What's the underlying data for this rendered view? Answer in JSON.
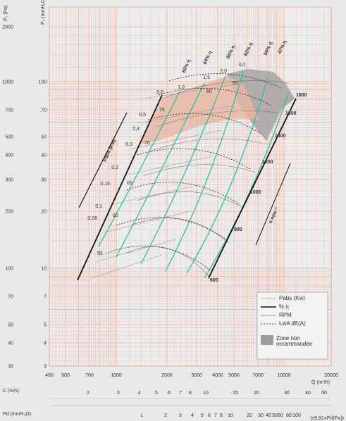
{
  "chart_data": {
    "type": "line",
    "title": "",
    "xlabel": "Q (m³/h)",
    "ylabel_pa": "Pₛ (Pa)",
    "ylabel_mmh2o": "Pₛ (mmH₂O)",
    "xlim": [
      400,
      20000
    ],
    "ylim_pa": [
      294,
      2000
    ],
    "x_scale": "log",
    "y_scale": "log",
    "x_ticks": [
      400,
      500,
      700,
      1000,
      2000,
      3000,
      4000,
      5000,
      7000,
      10000,
      20000
    ],
    "y_ticks_pa": [
      300,
      400,
      500,
      700,
      1000,
      2000
    ],
    "y_ticks_mm_lower": [
      3,
      4,
      5,
      7,
      10
    ],
    "y_ticks_mm_upper": [
      20,
      30,
      40,
      50,
      70,
      100
    ],
    "extra_y_ticks_pa": [
      200,
      100,
      70,
      50,
      40,
      30
    ],
    "rpm_labels": [
      "600",
      "800",
      "1000",
      "1200",
      "1400",
      "1600",
      "1800"
    ],
    "speed_axis_label": "n  min⁻¹",
    "power_axis_label": "Pabs (Kw)",
    "power_values": [
      "0,08",
      "0,1",
      "0,15",
      "0,2",
      "0,3",
      "0,4",
      "0,5",
      "0,8",
      "1,0",
      "1,5",
      "2,0",
      "3,0"
    ],
    "efficiency_labels": [
      "60% η",
      "64% η",
      "65% η",
      "62% η",
      "56% η",
      "47% η"
    ],
    "sound_labels": [
      "55",
      "60",
      "65",
      "70",
      "75",
      "80",
      "85"
    ],
    "c_axis_label": "C (m/s)",
    "c_ticks": [
      "2",
      "3",
      "4",
      "5",
      "6",
      "7",
      "8",
      "10",
      "15",
      "20",
      "30",
      "40",
      "50"
    ],
    "pd_axis_label": "Pd (mmH₂O)",
    "pd_ticks": [
      "1",
      "2",
      "3",
      "4",
      "5",
      "6",
      "7",
      "8",
      "10",
      "20",
      "30",
      "40",
      "50",
      "60",
      "80",
      "100"
    ],
    "pd_note": "(x9,81=Pd(Pa))",
    "legend": {
      "items": [
        "Pabs (Kw)",
        "% η",
        "RPM",
        "LwA dB(A)"
      ],
      "zone_label": "Zone non recommandée"
    },
    "colors": {
      "efficiency": "#2bbfa8",
      "rpm": "#111111",
      "power": "#9a9a9a",
      "sound": "#222222",
      "grid": "#f2b9a8",
      "zone": "#9c9c9c",
      "high_noise": "#e8b7a1"
    }
  }
}
